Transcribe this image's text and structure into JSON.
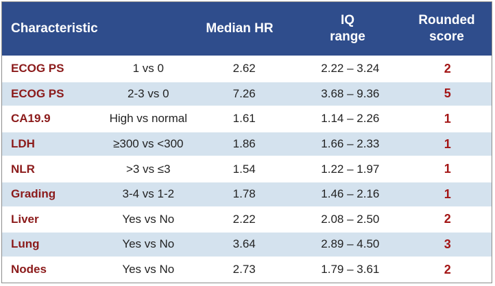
{
  "header": {
    "characteristic": "Characteristic",
    "median_hr": "Median HR",
    "iq_line1": "IQ",
    "iq_line2": "range",
    "score_line1": "Rounded",
    "score_line2": "score"
  },
  "rows": [
    {
      "characteristic": "ECOG PS",
      "comparison": "1 vs 0",
      "median_hr": "2.62",
      "iq_range": "2.22 – 3.24",
      "score": "2"
    },
    {
      "characteristic": "ECOG PS",
      "comparison": "2-3 vs 0",
      "median_hr": "7.26",
      "iq_range": "3.68 – 9.36",
      "score": "5"
    },
    {
      "characteristic": "CA19.9",
      "comparison": "High vs normal",
      "median_hr": "1.61",
      "iq_range": "1.14 – 2.26",
      "score": "1"
    },
    {
      "characteristic": "LDH",
      "comparison": "≥300 vs <300",
      "median_hr": "1.86",
      "iq_range": "1.66 – 2.33",
      "score": "1"
    },
    {
      "characteristic": "NLR",
      "comparison": ">3 vs ≤3",
      "median_hr": "1.54",
      "iq_range": "1.22 – 1.97",
      "score": "1"
    },
    {
      "characteristic": "Grading",
      "comparison": "3-4 vs 1-2",
      "median_hr": "1.78",
      "iq_range": "1.46 – 2.16",
      "score": "1"
    },
    {
      "characteristic": "Liver",
      "comparison": "Yes vs No",
      "median_hr": "2.22",
      "iq_range": "2.08 – 2.50",
      "score": "2"
    },
    {
      "characteristic": "Lung",
      "comparison": "Yes vs No",
      "median_hr": "3.64",
      "iq_range": "2.89 – 4.50",
      "score": "3"
    },
    {
      "characteristic": "Nodes",
      "comparison": "Yes vs No",
      "median_hr": "2.73",
      "iq_range": "1.79 – 3.61",
      "score": "2"
    }
  ],
  "colors": {
    "header_bg": "#2f4d8c",
    "stripe_bg": "#d4e2ee",
    "characteristic_text": "#8b1a1a",
    "score_text": "#a31515"
  }
}
